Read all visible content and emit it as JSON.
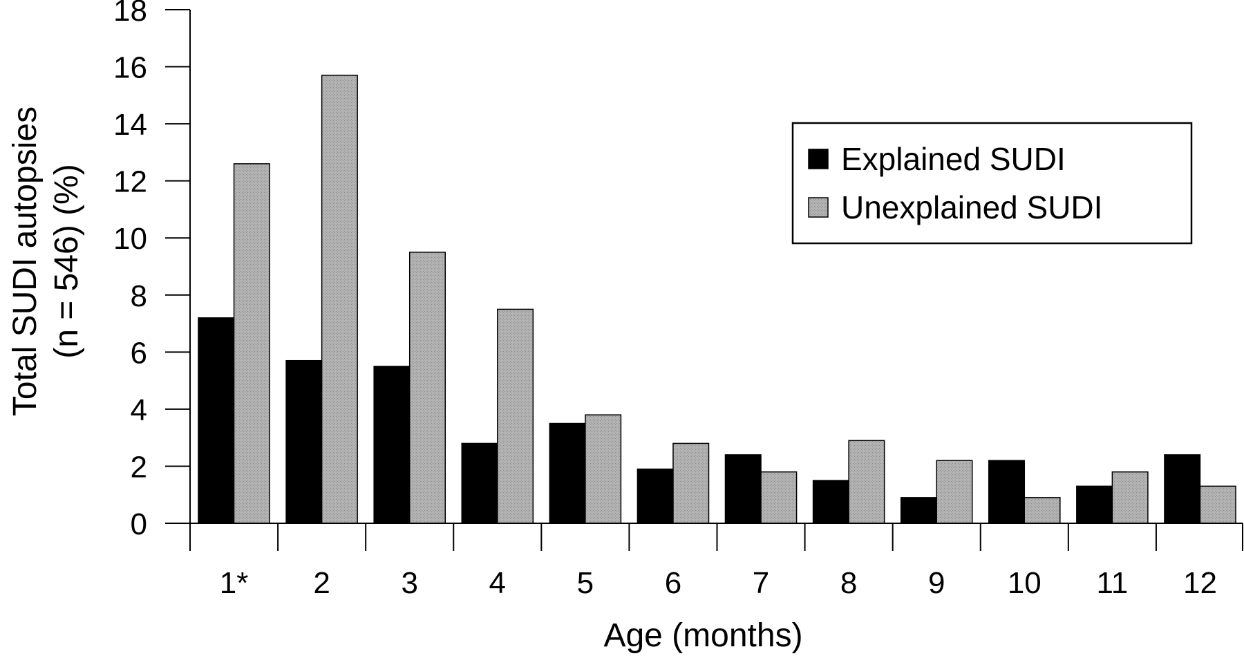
{
  "chart_data": {
    "type": "bar",
    "title": "",
    "xlabel": "Age (months)",
    "ylabel_lines": [
      "Total SUDI autopsies",
      "(n = 546) (%)"
    ],
    "categories": [
      "1*",
      "2",
      "3",
      "4",
      "5",
      "6",
      "7",
      "8",
      "9",
      "10",
      "11",
      "12"
    ],
    "series": [
      {
        "name": "Explained SUDI",
        "color": "#000000",
        "values": [
          7.2,
          5.7,
          5.5,
          2.8,
          3.5,
          1.9,
          2.4,
          1.5,
          0.9,
          2.2,
          1.3,
          2.4
        ]
      },
      {
        "name": "Unexplained SUDI",
        "color": "#aaaaaa",
        "values": [
          12.6,
          15.7,
          9.5,
          7.5,
          3.8,
          2.8,
          1.8,
          2.9,
          2.2,
          0.9,
          1.8,
          1.3
        ]
      }
    ],
    "ylim": [
      0,
      18
    ],
    "yticks": [
      0,
      2,
      4,
      6,
      8,
      10,
      12,
      14,
      16,
      18
    ],
    "grid": false,
    "legend_position": "top-right"
  }
}
